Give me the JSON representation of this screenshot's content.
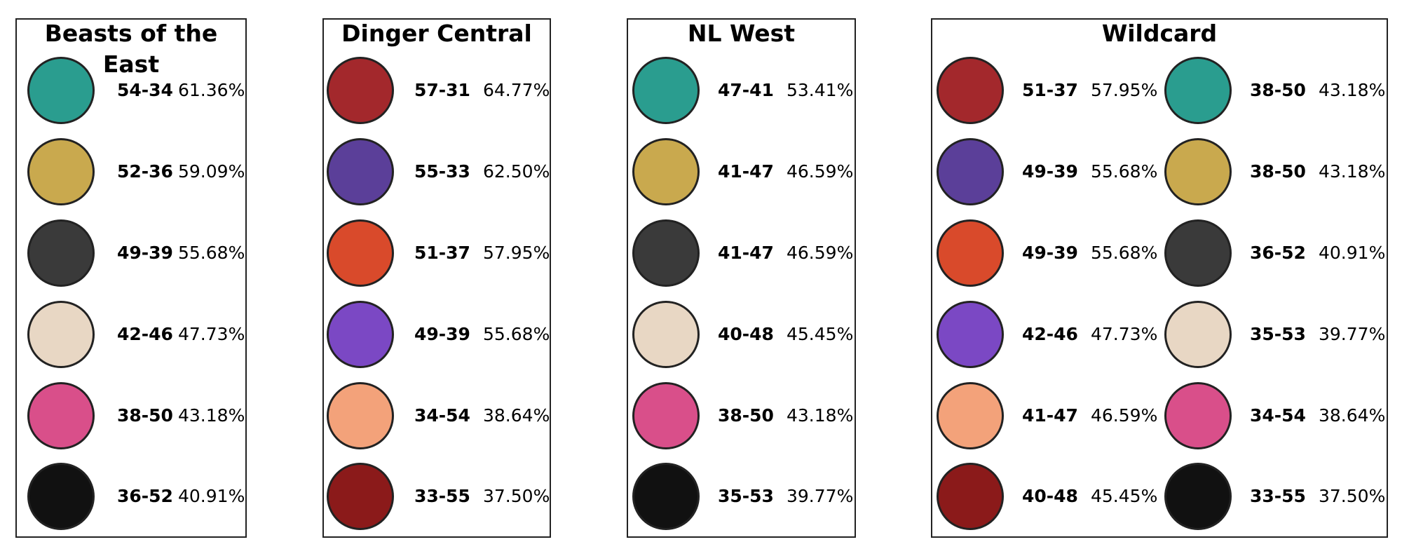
{
  "divisions": [
    {
      "title": "Beasts of the East",
      "columns": [
        [
          {
            "record": "54-34",
            "pct": "61.36%"
          },
          {
            "record": "52-36",
            "pct": "59.09%"
          },
          {
            "record": "49-39",
            "pct": "55.68%"
          },
          {
            "record": "42-46",
            "pct": "47.73%"
          },
          {
            "record": "38-50",
            "pct": "43.18%"
          },
          {
            "record": "36-52",
            "pct": "40.91%"
          }
        ]
      ]
    },
    {
      "title": "Dinger Central",
      "columns": [
        [
          {
            "record": "57-31",
            "pct": "64.77%"
          },
          {
            "record": "55-33",
            "pct": "62.50%"
          },
          {
            "record": "51-37",
            "pct": "57.95%"
          },
          {
            "record": "49-39",
            "pct": "55.68%"
          },
          {
            "record": "34-54",
            "pct": "38.64%"
          },
          {
            "record": "33-55",
            "pct": "37.50%"
          }
        ]
      ]
    },
    {
      "title": "NL West",
      "columns": [
        [
          {
            "record": "47-41",
            "pct": "53.41%"
          },
          {
            "record": "41-47",
            "pct": "46.59%"
          },
          {
            "record": "41-47",
            "pct": "46.59%"
          },
          {
            "record": "40-48",
            "pct": "45.45%"
          },
          {
            "record": "38-50",
            "pct": "43.18%"
          },
          {
            "record": "35-53",
            "pct": "39.77%"
          }
        ]
      ]
    },
    {
      "title": "Wildcard",
      "columns": [
        [
          {
            "record": "51-37",
            "pct": "57.95%"
          },
          {
            "record": "49-39",
            "pct": "55.68%"
          },
          {
            "record": "49-39",
            "pct": "55.68%"
          },
          {
            "record": "42-46",
            "pct": "47.73%"
          },
          {
            "record": "41-47",
            "pct": "46.59%"
          },
          {
            "record": "40-48",
            "pct": "45.45%"
          }
        ],
        [
          {
            "record": "38-50",
            "pct": "43.18%"
          },
          {
            "record": "38-50",
            "pct": "43.18%"
          },
          {
            "record": "36-52",
            "pct": "40.91%"
          },
          {
            "record": "35-53",
            "pct": "39.77%"
          },
          {
            "record": "34-54",
            "pct": "38.64%"
          },
          {
            "record": "33-55",
            "pct": "37.50%"
          }
        ]
      ]
    }
  ]
}
